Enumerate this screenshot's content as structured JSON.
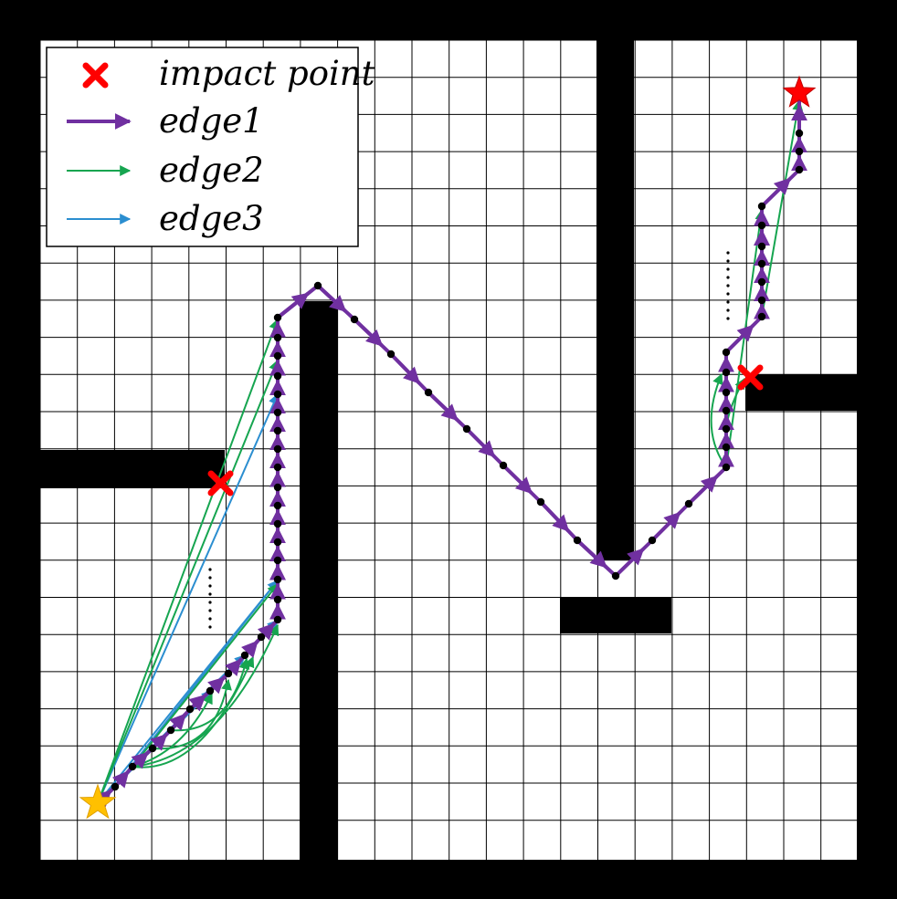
{
  "legend": {
    "impact_label": "impact point",
    "edge1_label": "edge1",
    "edge2_label": "edge2",
    "edge3_label": "edge3"
  },
  "colors": {
    "wall": "#000000",
    "grid": "#000000",
    "edge1": "#7030a0",
    "edge2": "#16a550",
    "edge3": "#2b8ed0",
    "impact": "#ff0000",
    "start_star": "#ffc000",
    "goal_star": "#ff0000",
    "node": "#000000"
  },
  "icons": {
    "impact": "red-x-mark",
    "start": "yellow-star",
    "goal": "red-star"
  }
}
